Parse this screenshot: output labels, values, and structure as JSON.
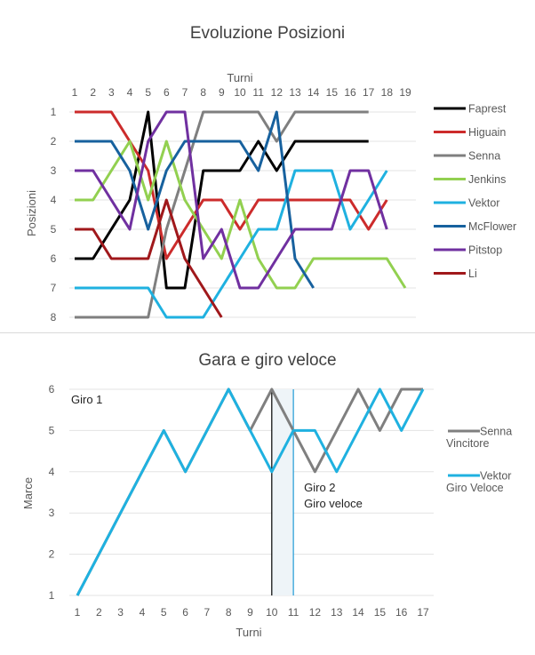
{
  "chart_data": [
    {
      "type": "line",
      "title": "Evoluzione Posizioni",
      "xlabel": "Turni",
      "ylabel": "Posizioni",
      "x_axis_position": "top",
      "y_inverted": true,
      "x": [
        1,
        2,
        3,
        4,
        5,
        6,
        7,
        8,
        9,
        10,
        11,
        12,
        13,
        14,
        15,
        16,
        17,
        18,
        19
      ],
      "xlim": [
        1,
        19
      ],
      "ylim": [
        1,
        8
      ],
      "yticks": [
        1,
        2,
        3,
        4,
        5,
        6,
        7,
        8
      ],
      "grid": true,
      "legend_position": "right",
      "series": [
        {
          "name": "Faprest",
          "color": "#000000",
          "values": [
            6,
            6,
            5,
            4,
            1,
            7,
            7,
            3,
            3,
            3,
            2,
            3,
            2,
            2,
            2,
            2,
            2,
            null,
            null
          ]
        },
        {
          "name": "Higuain",
          "color": "#cc2b2b",
          "values": [
            1,
            1,
            1,
            2,
            3,
            6,
            5,
            4,
            4,
            5,
            4,
            4,
            4,
            4,
            4,
            4,
            5,
            4,
            null
          ]
        },
        {
          "name": "Senna",
          "color": "#7f7f7f",
          "values": [
            8,
            8,
            8,
            8,
            8,
            5,
            3,
            1,
            1,
            1,
            1,
            2,
            1,
            1,
            1,
            1,
            1,
            null,
            null
          ]
        },
        {
          "name": "Jenkins",
          "color": "#92d050",
          "values": [
            4,
            4,
            3,
            2,
            4,
            2,
            4,
            5,
            6,
            4,
            6,
            7,
            7,
            6,
            6,
            6,
            6,
            6,
            7
          ]
        },
        {
          "name": "Vektor",
          "color": "#1fb1e0",
          "values": [
            7,
            7,
            7,
            7,
            7,
            8,
            8,
            8,
            7,
            6,
            5,
            5,
            3,
            3,
            3,
            5,
            4,
            3,
            null
          ]
        },
        {
          "name": "McFlower",
          "color": "#17619e",
          "values": [
            2,
            2,
            2,
            3,
            5,
            3,
            2,
            2,
            2,
            2,
            3,
            1,
            6,
            7,
            null,
            null,
            null,
            null,
            null
          ]
        },
        {
          "name": "Pitstop",
          "color": "#7030a0",
          "values": [
            3,
            3,
            4,
            5,
            2,
            1,
            1,
            6,
            5,
            7,
            7,
            6,
            5,
            5,
            5,
            3,
            3,
            5,
            null
          ]
        },
        {
          "name": "Li",
          "color": "#a0181b",
          "values": [
            5,
            5,
            6,
            6,
            6,
            4,
            6,
            7,
            8,
            null,
            null,
            null,
            null,
            null,
            null,
            null,
            null,
            null,
            null
          ]
        }
      ]
    },
    {
      "type": "line",
      "title": "Gara e giro veloce",
      "xlabel": "Turni",
      "ylabel": "Marce",
      "x": [
        1,
        2,
        3,
        4,
        5,
        6,
        7,
        8,
        9,
        10,
        11,
        12,
        13,
        14,
        15,
        16,
        17
      ],
      "xlim": [
        1,
        17
      ],
      "ylim": [
        1,
        6
      ],
      "yticks": [
        1,
        2,
        3,
        4,
        5,
        6
      ],
      "grid": true,
      "legend_position": "right",
      "series": [
        {
          "name": "Senna",
          "sublabel": "Vincitore",
          "color": "#7f7f7f",
          "values": [
            1,
            2,
            3,
            4,
            5,
            4,
            5,
            6,
            5,
            6,
            5,
            4,
            5,
            6,
            5,
            6,
            6
          ]
        },
        {
          "name": "Vektor",
          "sublabel": "Giro Veloce",
          "color": "#1fb1e0",
          "values": [
            1,
            2,
            3,
            4,
            5,
            4,
            5,
            6,
            5,
            4,
            5,
            5,
            4,
            5,
            6,
            5,
            6
          ]
        }
      ],
      "annotations": [
        {
          "label": "Giro 1",
          "x": 1
        },
        {
          "label": "Giro 2",
          "label2": "Giro veloce",
          "x": 11
        }
      ],
      "vlines": [
        {
          "x": 10,
          "color": "#000000"
        },
        {
          "x": 11,
          "color": "#1f9ad6"
        }
      ],
      "shaded_span": [
        10,
        11
      ]
    }
  ]
}
